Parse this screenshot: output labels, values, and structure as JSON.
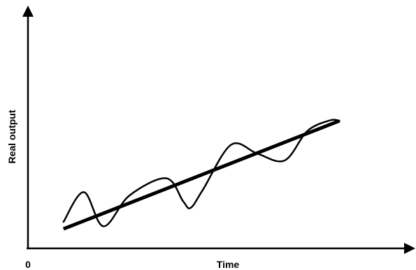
{
  "chart_data": {
    "type": "line",
    "title": "",
    "xlabel": "Time",
    "ylabel": "Real output",
    "origin_label": "0",
    "xlim": [
      0,
      100
    ],
    "ylim": [
      0,
      100
    ],
    "grid": false,
    "legend": "none",
    "tick_labels": false,
    "colors": {
      "line": "#000000",
      "background": "#ffffff"
    },
    "series": [
      {
        "style": "thick-straight",
        "points": [
          {
            "x": 9.4,
            "y": 8.3
          },
          {
            "x": 82.5,
            "y": 54.4
          }
        ]
      },
      {
        "style": "thin-wavy",
        "points": [
          {
            "x": 9.4,
            "y": 11.3
          },
          {
            "x": 14.8,
            "y": 24.0
          },
          {
            "x": 20.0,
            "y": 9.4
          },
          {
            "x": 26.9,
            "y": 22.6
          },
          {
            "x": 36.6,
            "y": 29.9
          },
          {
            "x": 41.1,
            "y": 20.1
          },
          {
            "x": 43.1,
            "y": 17.3
          },
          {
            "x": 46.4,
            "y": 25.2
          },
          {
            "x": 53.8,
            "y": 44.2
          },
          {
            "x": 60.8,
            "y": 40.4
          },
          {
            "x": 68.0,
            "y": 37.5
          },
          {
            "x": 74.0,
            "y": 50.1
          },
          {
            "x": 80.0,
            "y": 54.6
          },
          {
            "x": 82.5,
            "y": 54.4
          }
        ]
      }
    ]
  }
}
